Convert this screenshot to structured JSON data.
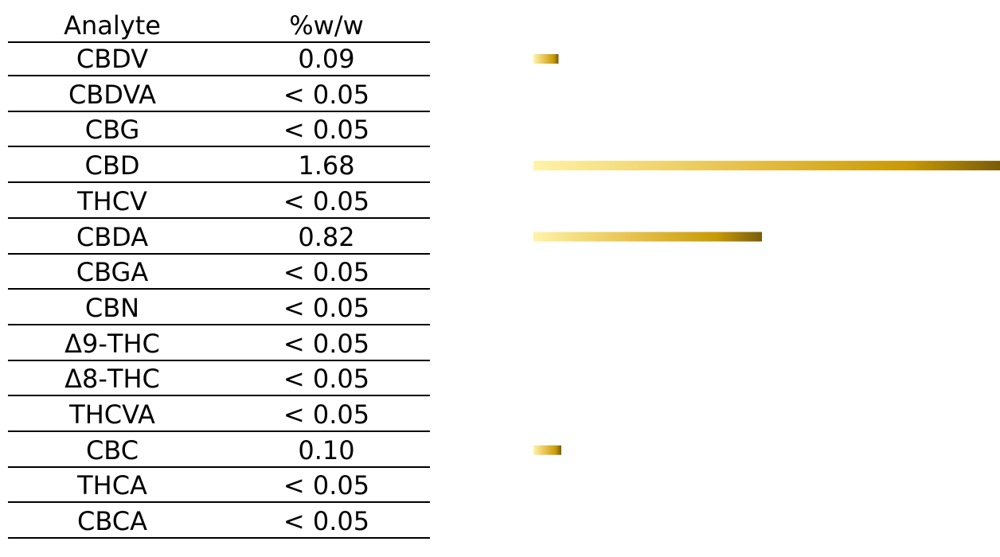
{
  "chart_data": {
    "type": "table",
    "columns": [
      "Analyte",
      "%w/w"
    ],
    "rows": [
      {
        "analyte": "CBDV",
        "value_label": "0.09",
        "value": 0.09
      },
      {
        "analyte": "CBDVA",
        "value_label": "< 0.05",
        "value": 0
      },
      {
        "analyte": "CBG",
        "value_label": "< 0.05",
        "value": 0
      },
      {
        "analyte": "CBD",
        "value_label": "1.68",
        "value": 1.68
      },
      {
        "analyte": "THCV",
        "value_label": "< 0.05",
        "value": 0
      },
      {
        "analyte": "CBDA",
        "value_label": "0.82",
        "value": 0.82
      },
      {
        "analyte": "CBGA",
        "value_label": "< 0.05",
        "value": 0
      },
      {
        "analyte": "CBN",
        "value_label": "< 0.05",
        "value": 0
      },
      {
        "analyte": "Δ9-THC",
        "value_label": "< 0.05",
        "value": 0
      },
      {
        "analyte": "Δ8-THC",
        "value_label": "< 0.05",
        "value": 0
      },
      {
        "analyte": "THCVA",
        "value_label": "< 0.05",
        "value": 0
      },
      {
        "analyte": "CBC",
        "value_label": "0.10",
        "value": 0.1
      },
      {
        "analyte": "THCA",
        "value_label": "< 0.05",
        "value": 0
      },
      {
        "analyte": "CBCA",
        "value_label": "< 0.05",
        "value": 0
      }
    ],
    "bar_colors": [
      "#FFF3A8",
      "#E6C04A",
      "#C89A06",
      "#7A5C08"
    ]
  }
}
